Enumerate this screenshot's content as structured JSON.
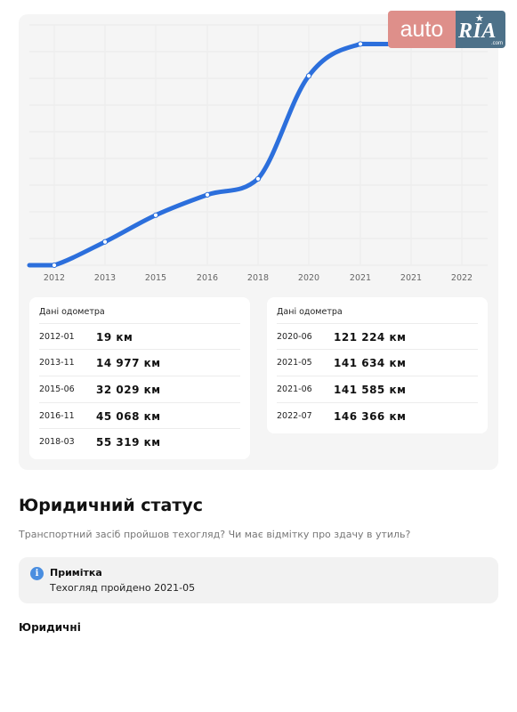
{
  "logo": {
    "auto": "auto",
    "ria": "RIA",
    "com": ".com"
  },
  "chart_data": {
    "type": "line",
    "categories": [
      "2012",
      "2013",
      "2015",
      "2016",
      "2018",
      "2020",
      "2021",
      "2021",
      "2022"
    ],
    "points": [
      {
        "date": "2012-01",
        "km": 19
      },
      {
        "date": "2013-11",
        "km": 14977
      },
      {
        "date": "2015-06",
        "km": 32029
      },
      {
        "date": "2016-11",
        "km": 45068
      },
      {
        "date": "2018-03",
        "km": 55319
      },
      {
        "date": "2020-06",
        "km": 121224
      },
      {
        "date": "2021-05",
        "km": 141634
      },
      {
        "date": "2021-06",
        "km": 141585
      },
      {
        "date": "2022-07",
        "km": 146366
      }
    ],
    "ylim": [
      0,
      160000
    ],
    "grid": true,
    "line_color": "#2c6fdc",
    "title": "",
    "xlabel": "",
    "ylabel": ""
  },
  "odometer": {
    "panel1": {
      "title": "Дані одометра",
      "rows": [
        {
          "date": "2012-01",
          "km": "19 км"
        },
        {
          "date": "2013-11",
          "km": "14 977 км"
        },
        {
          "date": "2015-06",
          "km": "32 029 км"
        },
        {
          "date": "2016-11",
          "km": "45 068 км"
        },
        {
          "date": "2018-03",
          "km": "55 319 км"
        }
      ]
    },
    "panel2": {
      "title": "Дані одометра",
      "rows": [
        {
          "date": "2020-06",
          "km": "121 224 км"
        },
        {
          "date": "2021-05",
          "km": "141 634 км"
        },
        {
          "date": "2021-06",
          "km": "141 585 км"
        },
        {
          "date": "2022-07",
          "km": "146 366 км"
        }
      ]
    }
  },
  "legal": {
    "title": "Юридичний статус",
    "subtitle": "Транспортний засіб пройшов техогляд? Чи має відмітку про здачу в утиль?",
    "note_title": "Примітка",
    "note_text": "Техогляд пройдено 2021-05",
    "section": "Юридичні"
  }
}
